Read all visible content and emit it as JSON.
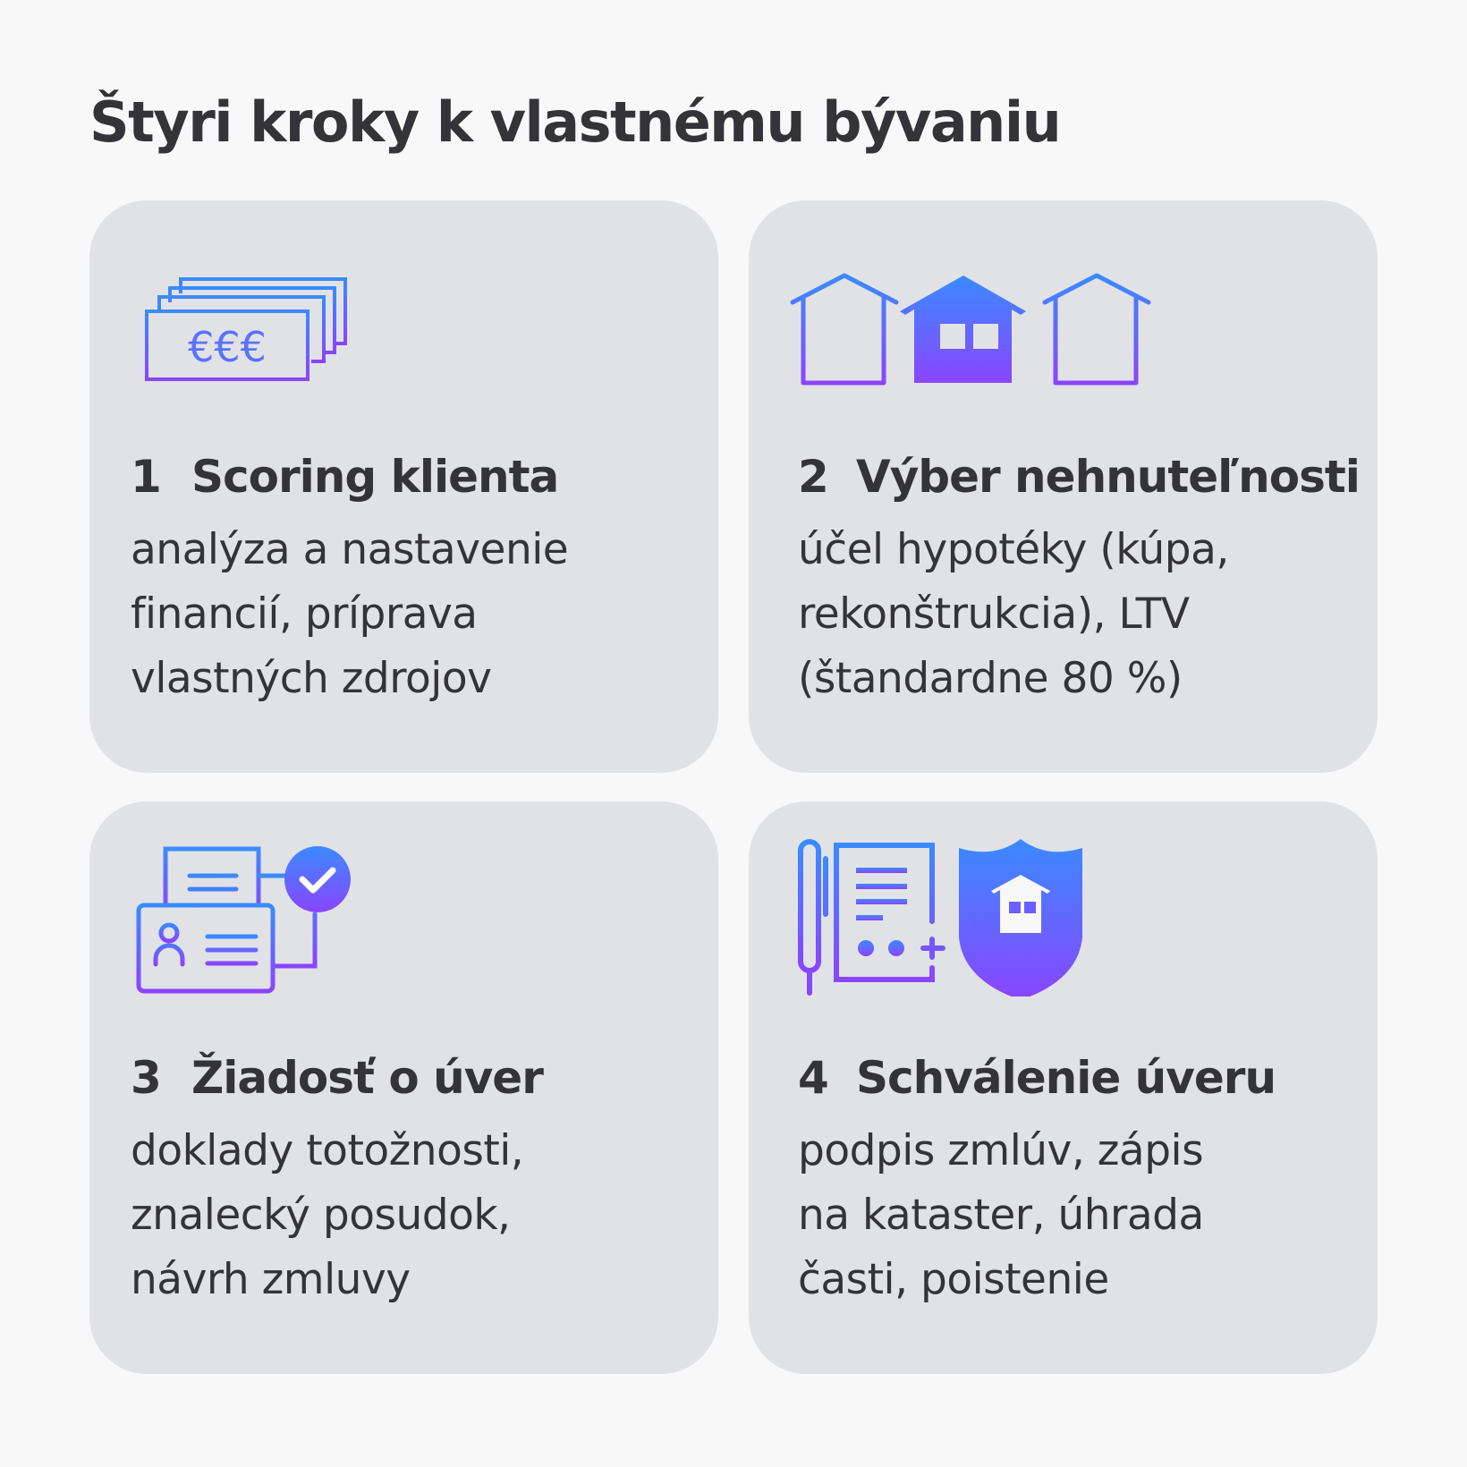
{
  "title": "Štyri kroky k vlastnému bývaniu",
  "colors": {
    "gradient_top": "#3a8bff",
    "gradient_bottom": "#8a45ff",
    "card_bg": "#e1e2e6",
    "text": "#333338"
  },
  "steps": [
    {
      "number": "1",
      "title": "Scoring klienta",
      "icon": "euro-banknotes-icon",
      "lines": [
        "analýza a nastavenie",
        "financií, príprava",
        "vlastných zdrojov"
      ],
      "icon_text": "€€€"
    },
    {
      "number": "2",
      "title": "Výber nehnuteľnosti",
      "icon": "houses-icon",
      "lines": [
        "účel hypotéky (kúpa,",
        "rekonštrukcia), LTV",
        "(štandardne 80 %)"
      ]
    },
    {
      "number": "3",
      "title": "Žiadosť o úver",
      "icon": "id-documents-check-icon",
      "lines": [
        "doklady totožnosti,",
        "znalecký posudok,",
        "návrh zmluvy"
      ]
    },
    {
      "number": "4",
      "title": "Schválenie úveru",
      "icon": "contract-insurance-icon",
      "lines": [
        "podpis zmlúv, zápis",
        "na kataster, úhrada",
        "časti, poistenie"
      ]
    }
  ]
}
